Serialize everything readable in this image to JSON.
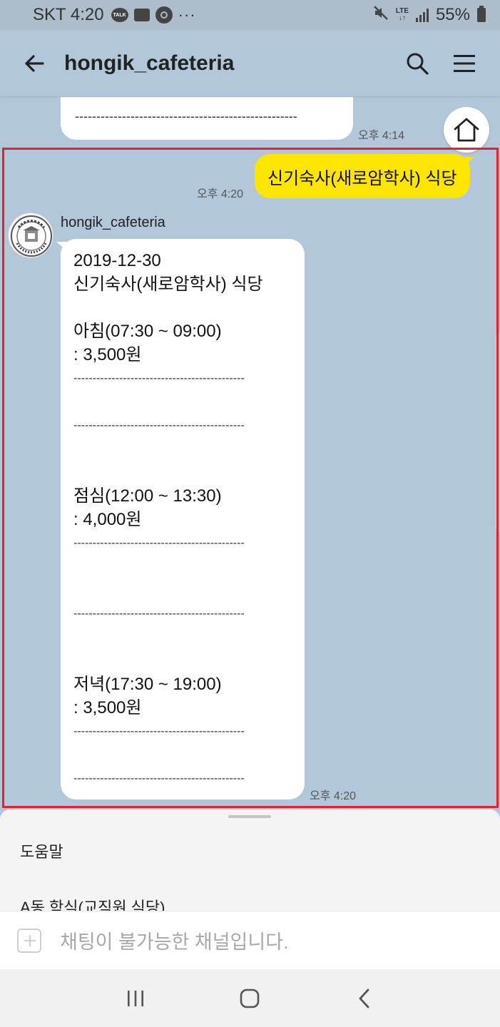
{
  "status_bar": {
    "carrier_time": "SKT 4:20",
    "talk_badge": "TALK",
    "dots": "···",
    "lte": "LTE",
    "battery": "55%"
  },
  "header": {
    "title": "hongik_cafeteria",
    "icons": [
      "back-arrow-icon",
      "search-icon",
      "menu-icon"
    ]
  },
  "chat": {
    "previous": {
      "dashes": "----------------------------------------------------",
      "time": "오후 4:14"
    },
    "user_message": {
      "text": "신기숙사(새로암학사) 식당",
      "time": "오후 4:20"
    },
    "bot_message": {
      "sender": "hongik_cafeteria",
      "date": "2019-12-30",
      "place": "신기숙사(새로암학사) 식당",
      "breakfast": {
        "label": "아침(07:30 ~ 09:00)",
        "price": ": 3,500원"
      },
      "lunch": {
        "label": "점심(12:00 ~ 13:30)",
        "price": ": 4,000원"
      },
      "dinner": {
        "label": "저녁(17:30 ~ 19:00)",
        "price": ": 3,500원"
      },
      "dashes": "---------------------------------------------",
      "time": "오후 4:20"
    }
  },
  "quick_replies": [
    "도움말",
    "A동 학식(교직원 식당)"
  ],
  "input": {
    "placeholder": "채팅이 불가능한 채널입니다."
  },
  "colors": {
    "chat_background": "#b2c7da",
    "my_bubble": "#fee500",
    "highlight_border": "#e0242e"
  }
}
